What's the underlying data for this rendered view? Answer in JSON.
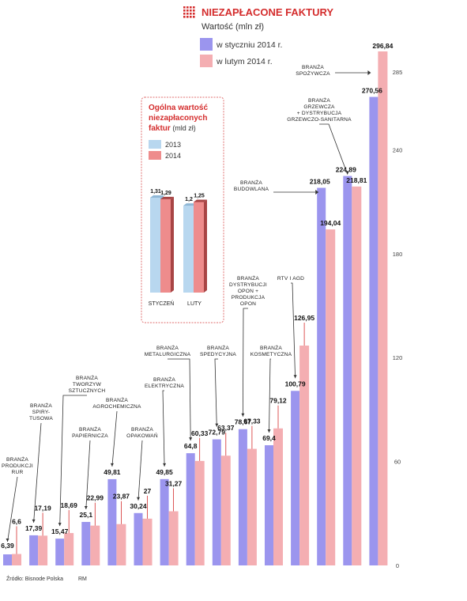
{
  "colors": {
    "series1": "#9b95ee",
    "series2": "#f4aeb2",
    "accent": "#d42d2d",
    "leader": "#333333",
    "inset2013": "#b8d7ef",
    "inset2014": "#ee8c8c"
  },
  "chart_data": [
    {
      "type": "bar",
      "title": "NIEZAPŁACONE FAKTURY",
      "subtitle": "Wartość (mln zł)",
      "ylim": [
        0,
        296.84
      ],
      "yticks": [
        0,
        60,
        120,
        180,
        240,
        285
      ],
      "legend_position": "top-left",
      "categories": [
        "BRANŻA PRODUKCJI RUR",
        "BRANŻA SPIRY- TUSOWA",
        "BRANŻA TWORZYW SZTUCZNYCH",
        "BRANŻA PAPIERNICZA",
        "BRANŻA AGROCHEMICZNA",
        "BRANŻA OPAKOWAŃ",
        "BRANŻA ELEKTRYCZNA",
        "BRANŻA METALURGICZNA",
        "BRANŻA SPEDYCYJNA",
        "BRANŻA DYSTRYBUCJI OPON + PRODUKCJA OPON",
        "BRANŻA KOSMETYCZNA",
        "RTV I AGD",
        "BRANŻA BUDOWLANA",
        "BRANŻA GRZEWCZA + DYSTRYBUCJA GRZEWCZO-SANITARNA",
        "BRANŻA SPOŻYWCZA"
      ],
      "series": [
        {
          "name": "w styczniu 2014 r.",
          "values": [
            6.39,
            17.39,
            15.47,
            25.1,
            49.81,
            30.24,
            49.85,
            64.8,
            72.79,
            78.67,
            69.4,
            100.79,
            218.05,
            224.89,
            270.56
          ],
          "labels": [
            "6,39",
            "17,39",
            "15,47",
            "25,1",
            "49,81",
            "30,24",
            "49,85",
            "64,8",
            "72,79",
            "78,67",
            "69,4",
            "100,79",
            "218,05",
            "224,89",
            "270,56"
          ]
        },
        {
          "name": "w lutym 2014 r.",
          "values": [
            6.6,
            17.19,
            18.69,
            22.99,
            23.87,
            27,
            31.27,
            60.33,
            63.37,
            67.33,
            79.12,
            126.95,
            194.04,
            218.81,
            296.84
          ],
          "labels": [
            "6,6",
            "17,19",
            "18,69",
            "22,99",
            "23,87",
            "27",
            "31,27",
            "60,33",
            "63,37",
            "67,33",
            "79,12",
            "126,95",
            "194,04",
            "218,81",
            "296,84"
          ]
        }
      ]
    },
    {
      "type": "bar",
      "title": "Ogólna wartość niezapłaconych faktur",
      "subtitle": "(mld zł)",
      "categories": [
        "STYCZEŃ",
        "LUTY"
      ],
      "series": [
        {
          "name": "2013",
          "values": [
            1.31,
            1.2
          ],
          "labels": [
            "1,31",
            "1,2"
          ]
        },
        {
          "name": "2014",
          "values": [
            1.29,
            1.25
          ],
          "labels": [
            "1,29",
            "1,25"
          ]
        }
      ]
    }
  ],
  "source": "Źródło: Bisnode Polska",
  "credit": "RM"
}
